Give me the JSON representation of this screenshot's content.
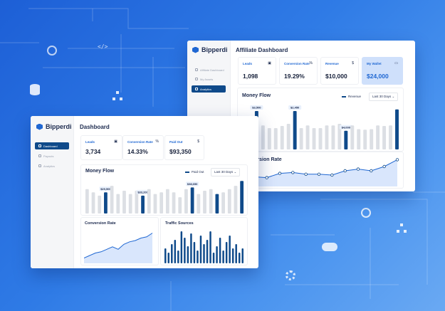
{
  "colors": {
    "accent": "#1f67d2",
    "dark_bar": "#0f4a8a",
    "light_bar": "#dcdfe4",
    "wallet_bg": "#cfe0fb"
  },
  "back_window": {
    "brand": "Bipperdi",
    "title": "Affiliate Dashboard",
    "nav": [
      {
        "label": "Affiliate Dashboard",
        "icon": "home-icon",
        "active": false
      },
      {
        "label": "My Assets",
        "icon": "folder-icon",
        "active": false
      },
      {
        "label": "Analytics",
        "icon": "chart-icon",
        "active": true
      }
    ],
    "stats": [
      {
        "label": "Leads",
        "value": "1,098",
        "icon": "briefcase-icon",
        "glyph": "▣"
      },
      {
        "label": "Conversion Rate",
        "value": "19.29%",
        "icon": "percent-icon",
        "glyph": "%"
      },
      {
        "label": "Revenue",
        "value": "$10,000",
        "icon": "dollar-icon",
        "glyph": "$"
      },
      {
        "label": "My Wallet",
        "value": "$24,000",
        "icon": "wallet-icon",
        "glyph": "▭"
      }
    ],
    "money_flow": {
      "title": "Money Flow",
      "legend": "Revenue",
      "range": "Last 30 Days",
      "chart_data": {
        "type": "bar",
        "values": [
          62,
          38,
          72,
          45,
          40,
          40,
          44,
          48,
          72,
          40,
          45,
          40,
          40,
          45,
          45,
          48,
          35,
          45,
          38,
          37,
          38,
          45,
          44,
          45,
          75
        ],
        "highlight": [
          2,
          8,
          16,
          24
        ],
        "labels": {
          "2": "$3,500",
          "8": "$2,450",
          "16": "$4,000"
        }
      }
    },
    "conversion": {
      "title": "Conversion Rate",
      "chart_data": {
        "type": "line",
        "values": [
          12,
          16,
          14,
          24,
          26,
          22,
          22,
          20,
          30,
          34,
          30,
          40,
          56
        ]
      }
    }
  },
  "front_window": {
    "brand": "Bipperdi",
    "title": "Dashboard",
    "nav": [
      {
        "label": "Dashboard",
        "icon": "home-icon",
        "active": true
      },
      {
        "label": "Payouts",
        "icon": "card-icon",
        "active": false
      },
      {
        "label": "Analytics",
        "icon": "chart-icon",
        "active": false
      }
    ],
    "stats": [
      {
        "label": "Leads",
        "value": "3,734",
        "icon": "briefcase-icon",
        "glyph": "▣"
      },
      {
        "label": "Conversion Rate",
        "value": "14.33%",
        "icon": "percent-icon",
        "glyph": "%"
      },
      {
        "label": "Paid Out",
        "value": "$93,350",
        "icon": "dollar-icon",
        "glyph": "$"
      }
    ],
    "money_flow": {
      "title": "Money Flow",
      "legend": "Paid Out",
      "range": "Last 30 Days",
      "chart_data": {
        "type": "bar",
        "values": [
          30,
          26,
          22,
          26,
          34,
          24,
          28,
          24,
          28,
          22,
          30,
          24,
          26,
          30,
          26,
          20,
          30,
          32,
          24,
          28,
          30,
          24,
          26,
          30,
          34,
          40
        ],
        "highlight": [
          3,
          9,
          17,
          21,
          25
        ],
        "labels": {
          "3": "$29,500",
          "9": "$33,200",
          "17": "$38,650"
        }
      }
    },
    "conversion": {
      "title": "Conversion Rate",
      "chart_data": {
        "type": "area",
        "values": [
          4,
          8,
          12,
          14,
          18,
          22,
          18,
          26,
          30,
          32,
          36,
          38,
          44
        ]
      }
    },
    "traffic": {
      "title": "Traffic Sources",
      "chart_data": {
        "type": "bar",
        "values": [
          14,
          10,
          18,
          22,
          12,
          30,
          24,
          16,
          28,
          20,
          12,
          26,
          18,
          22,
          30,
          10,
          16,
          24,
          12,
          20,
          26,
          14,
          18,
          10,
          14
        ]
      }
    }
  }
}
